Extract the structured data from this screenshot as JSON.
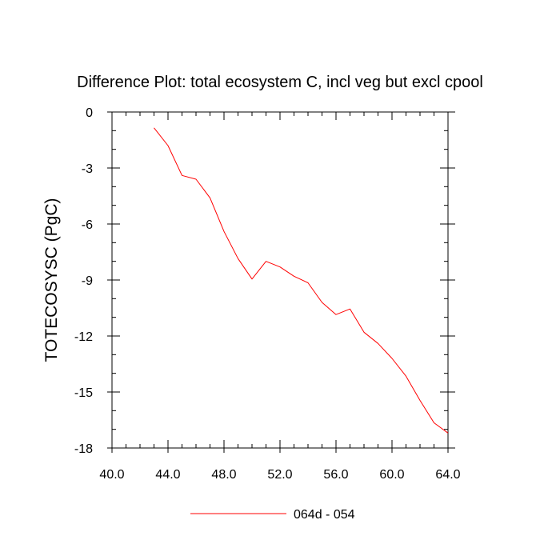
{
  "chart_data": {
    "type": "line",
    "title": "Difference Plot: total ecosystem C, incl veg but excl cpool",
    "xlabel": "",
    "ylabel": "TOTECOSYSC  (PgC)",
    "xlim": [
      40,
      64
    ],
    "ylim": [
      -18,
      0
    ],
    "x_ticks": [
      40,
      44,
      48,
      52,
      56,
      60,
      64
    ],
    "x_tick_labels": [
      "40.0",
      "44.0",
      "48.0",
      "52.0",
      "56.0",
      "60.0",
      "64.0"
    ],
    "y_ticks": [
      0,
      -3,
      -6,
      -9,
      -12,
      -15,
      -18
    ],
    "y_tick_labels": [
      "0",
      "-3",
      "-6",
      "-9",
      "-12",
      "-15",
      "-18"
    ],
    "grid": false,
    "legend_position": "bottom",
    "series": [
      {
        "name": "064d - 054",
        "color": "#ff0000",
        "x": [
          43,
          44,
          45,
          46,
          47,
          48,
          49,
          50,
          51,
          52,
          53,
          54,
          55,
          56,
          57,
          58,
          59,
          60,
          61,
          62,
          63,
          64
        ],
        "y": [
          -0.85,
          -1.8,
          -3.4,
          -3.6,
          -4.6,
          -6.4,
          -7.85,
          -8.95,
          -8.0,
          -8.3,
          -8.8,
          -9.15,
          -10.2,
          -10.85,
          -10.55,
          -11.8,
          -12.4,
          -13.2,
          -14.15,
          -15.45,
          -16.65,
          -17.2
        ]
      }
    ]
  }
}
